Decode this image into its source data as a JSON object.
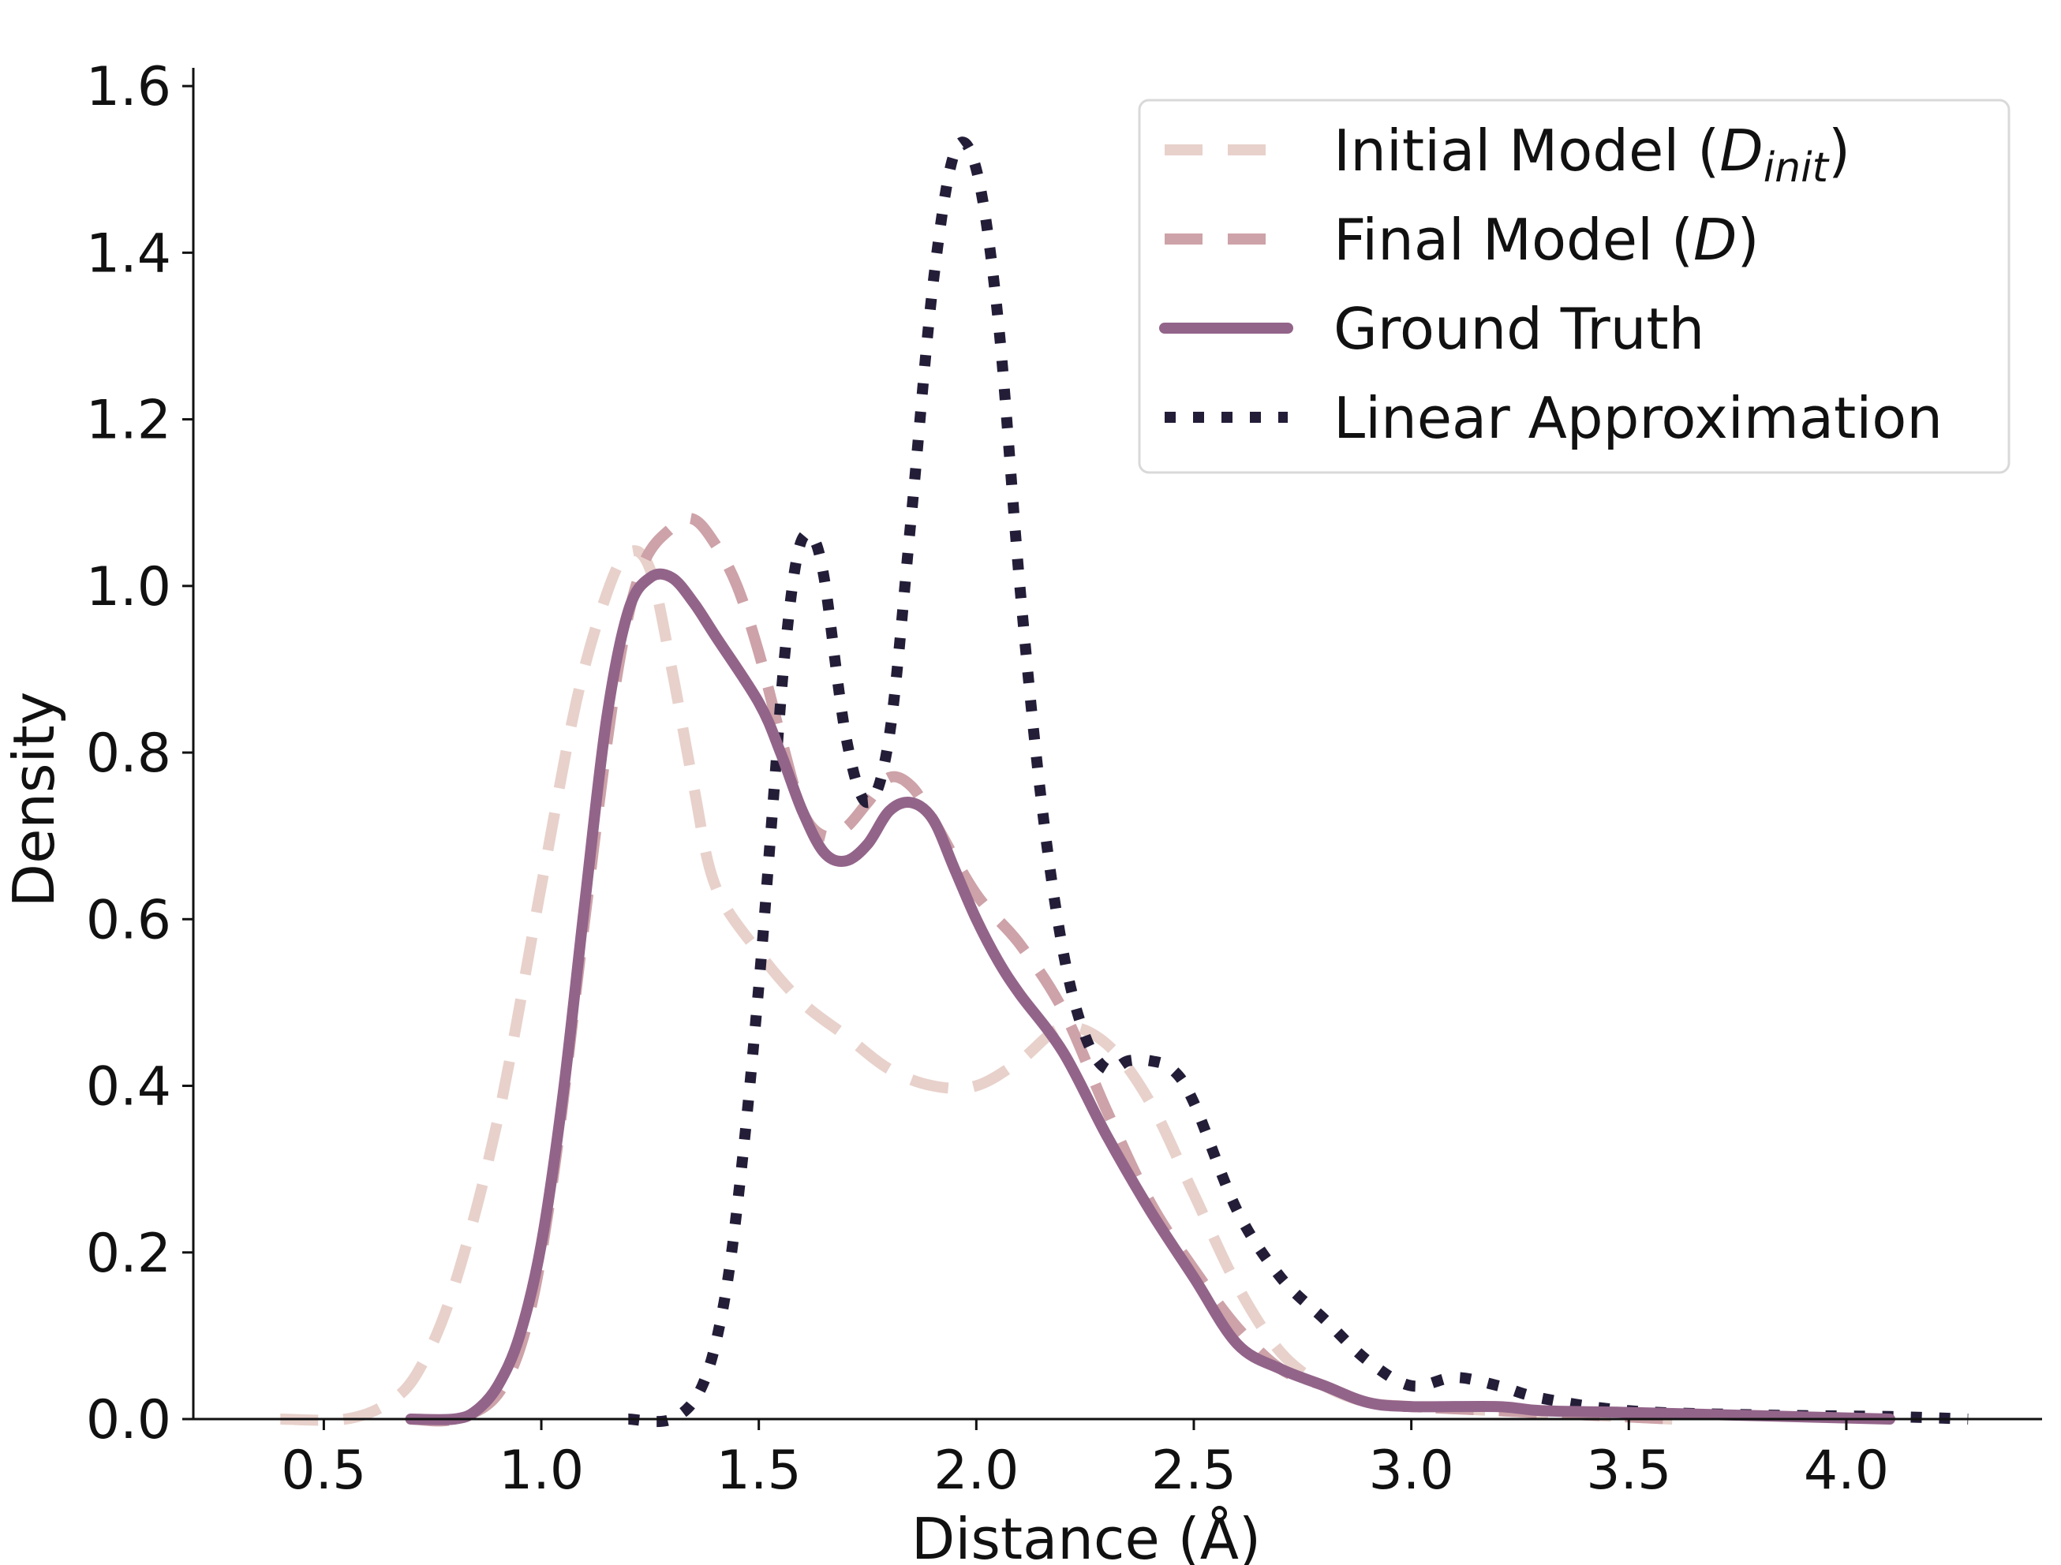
{
  "chart_data": {
    "type": "line",
    "xlabel": "Distance (Å)",
    "ylabel": "Density",
    "xlim": [
      0.2,
      4.45
    ],
    "ylim": [
      0.0,
      1.62
    ],
    "xticks": [
      0.5,
      1.0,
      1.5,
      2.0,
      2.5,
      3.0,
      3.5,
      4.0
    ],
    "xtick_labels": [
      "0.5",
      "1.0",
      "1.5",
      "2.0",
      "2.5",
      "3.0",
      "3.5",
      "4.0"
    ],
    "yticks": [
      0.0,
      0.2,
      0.4,
      0.6,
      0.8,
      1.0,
      1.2,
      1.4,
      1.6
    ],
    "ytick_labels": [
      "0.0",
      "0.2",
      "0.4",
      "0.6",
      "0.8",
      "1.0",
      "1.2",
      "1.4",
      "1.6"
    ],
    "grid": false,
    "legend_position": "top-right",
    "series": [
      {
        "name": "Initial Model (Dinit)",
        "color": "#e8d1cb",
        "dash": "dashed",
        "points": [
          [
            0.4,
            0.0
          ],
          [
            0.55,
            0.0
          ],
          [
            0.65,
            0.02
          ],
          [
            0.72,
            0.06
          ],
          [
            0.8,
            0.16
          ],
          [
            0.9,
            0.36
          ],
          [
            1.0,
            0.64
          ],
          [
            1.08,
            0.86
          ],
          [
            1.15,
            0.99
          ],
          [
            1.2,
            1.04
          ],
          [
            1.25,
            1.02
          ],
          [
            1.3,
            0.9
          ],
          [
            1.35,
            0.76
          ],
          [
            1.4,
            0.64
          ],
          [
            1.5,
            0.56
          ],
          [
            1.6,
            0.5
          ],
          [
            1.7,
            0.46
          ],
          [
            1.8,
            0.42
          ],
          [
            1.9,
            0.4
          ],
          [
            2.0,
            0.4
          ],
          [
            2.1,
            0.43
          ],
          [
            2.2,
            0.47
          ],
          [
            2.3,
            0.45
          ],
          [
            2.4,
            0.38
          ],
          [
            2.5,
            0.27
          ],
          [
            2.6,
            0.16
          ],
          [
            2.7,
            0.08
          ],
          [
            2.8,
            0.04
          ],
          [
            2.9,
            0.02
          ],
          [
            3.0,
            0.015
          ],
          [
            3.2,
            0.01
          ],
          [
            3.4,
            0.005
          ],
          [
            3.6,
            0.0
          ]
        ]
      },
      {
        "name": "Final Model (D)",
        "color": "#cda2a8",
        "dash": "dashed",
        "points": [
          [
            0.7,
            0.0
          ],
          [
            0.8,
            0.0
          ],
          [
            0.9,
            0.03
          ],
          [
            0.97,
            0.12
          ],
          [
            1.03,
            0.3
          ],
          [
            1.1,
            0.6
          ],
          [
            1.17,
            0.88
          ],
          [
            1.23,
            1.02
          ],
          [
            1.3,
            1.07
          ],
          [
            1.35,
            1.08
          ],
          [
            1.4,
            1.05
          ],
          [
            1.45,
            1.0
          ],
          [
            1.5,
            0.92
          ],
          [
            1.55,
            0.82
          ],
          [
            1.6,
            0.73
          ],
          [
            1.65,
            0.7
          ],
          [
            1.7,
            0.71
          ],
          [
            1.75,
            0.74
          ],
          [
            1.8,
            0.77
          ],
          [
            1.85,
            0.76
          ],
          [
            1.9,
            0.72
          ],
          [
            2.0,
            0.63
          ],
          [
            2.1,
            0.57
          ],
          [
            2.2,
            0.49
          ],
          [
            2.3,
            0.37
          ],
          [
            2.4,
            0.26
          ],
          [
            2.5,
            0.18
          ],
          [
            2.6,
            0.11
          ],
          [
            2.7,
            0.06
          ],
          [
            2.8,
            0.04
          ],
          [
            2.9,
            0.02
          ],
          [
            3.0,
            0.015
          ],
          [
            3.2,
            0.01
          ],
          [
            3.4,
            0.005
          ],
          [
            3.6,
            0.0
          ]
        ]
      },
      {
        "name": "Ground Truth",
        "color": "#93648a",
        "dash": "solid",
        "points": [
          [
            0.7,
            0.0
          ],
          [
            0.8,
            0.0
          ],
          [
            0.85,
            0.01
          ],
          [
            0.9,
            0.04
          ],
          [
            0.95,
            0.1
          ],
          [
            1.0,
            0.21
          ],
          [
            1.05,
            0.39
          ],
          [
            1.1,
            0.62
          ],
          [
            1.15,
            0.84
          ],
          [
            1.2,
            0.97
          ],
          [
            1.25,
            1.01
          ],
          [
            1.3,
            1.01
          ],
          [
            1.35,
            0.98
          ],
          [
            1.4,
            0.94
          ],
          [
            1.5,
            0.86
          ],
          [
            1.55,
            0.8
          ],
          [
            1.6,
            0.73
          ],
          [
            1.65,
            0.68
          ],
          [
            1.7,
            0.67
          ],
          [
            1.75,
            0.69
          ],
          [
            1.8,
            0.73
          ],
          [
            1.85,
            0.74
          ],
          [
            1.9,
            0.72
          ],
          [
            1.95,
            0.66
          ],
          [
            2.0,
            0.6
          ],
          [
            2.05,
            0.55
          ],
          [
            2.1,
            0.51
          ],
          [
            2.2,
            0.44
          ],
          [
            2.3,
            0.34
          ],
          [
            2.4,
            0.25
          ],
          [
            2.5,
            0.17
          ],
          [
            2.6,
            0.09
          ],
          [
            2.7,
            0.06
          ],
          [
            2.8,
            0.04
          ],
          [
            2.9,
            0.02
          ],
          [
            3.0,
            0.015
          ],
          [
            3.2,
            0.015
          ],
          [
            3.3,
            0.01
          ],
          [
            3.5,
            0.008
          ],
          [
            3.8,
            0.004
          ],
          [
            4.1,
            0.0
          ]
        ]
      },
      {
        "name": "Linear Approximation",
        "color": "#241d38",
        "dash": "dotted",
        "points": [
          [
            1.2,
            0.0
          ],
          [
            1.3,
            0.0
          ],
          [
            1.37,
            0.04
          ],
          [
            1.42,
            0.14
          ],
          [
            1.46,
            0.3
          ],
          [
            1.5,
            0.52
          ],
          [
            1.53,
            0.72
          ],
          [
            1.56,
            0.92
          ],
          [
            1.59,
            1.04
          ],
          [
            1.62,
            1.06
          ],
          [
            1.65,
            1.01
          ],
          [
            1.7,
            0.82
          ],
          [
            1.75,
            0.74
          ],
          [
            1.8,
            0.82
          ],
          [
            1.85,
            1.08
          ],
          [
            1.9,
            1.36
          ],
          [
            1.95,
            1.52
          ],
          [
            2.0,
            1.5
          ],
          [
            2.05,
            1.32
          ],
          [
            2.1,
            1.0
          ],
          [
            2.15,
            0.74
          ],
          [
            2.2,
            0.56
          ],
          [
            2.25,
            0.46
          ],
          [
            2.3,
            0.42
          ],
          [
            2.35,
            0.43
          ],
          [
            2.4,
            0.43
          ],
          [
            2.45,
            0.42
          ],
          [
            2.5,
            0.38
          ],
          [
            2.6,
            0.25
          ],
          [
            2.7,
            0.17
          ],
          [
            2.8,
            0.12
          ],
          [
            2.9,
            0.07
          ],
          [
            3.0,
            0.04
          ],
          [
            3.1,
            0.05
          ],
          [
            3.2,
            0.04
          ],
          [
            3.3,
            0.025
          ],
          [
            3.5,
            0.01
          ],
          [
            3.8,
            0.005
          ],
          [
            4.1,
            0.003
          ],
          [
            4.28,
            0.0
          ]
        ]
      }
    ]
  },
  "legend": {
    "items": [
      {
        "label": "Initial Model (",
        "italic": "D",
        "sub": "init",
        "after": ")"
      },
      {
        "label": "Final Model (",
        "italic": "D",
        "sub": "",
        "after": ")"
      },
      {
        "label": "Ground Truth",
        "italic": "",
        "sub": "",
        "after": ""
      },
      {
        "label": "Linear Approximation",
        "italic": "",
        "sub": "",
        "after": ""
      }
    ]
  }
}
